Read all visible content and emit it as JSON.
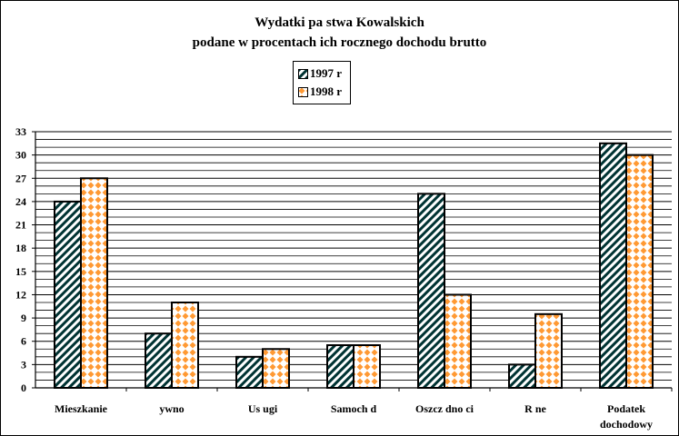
{
  "chart_data": {
    "type": "bar",
    "title": "Wydatki pa  stwa Kowalskich",
    "subtitle": "podane w procentach ich rocznego dochodu brutto",
    "categories": [
      [
        "Mieszkanie"
      ],
      [
        "ywno"
      ],
      [
        "Us ugi"
      ],
      [
        "Samoch d"
      ],
      [
        "Oszcz dno ci"
      ],
      [
        "R   ne"
      ],
      [
        "Podatek",
        "dochodowy"
      ]
    ],
    "series": [
      {
        "name": "1997 r",
        "values": [
          24,
          7,
          4,
          5.5,
          25,
          3,
          31.5
        ],
        "pattern": "diagonal-hatch"
      },
      {
        "name": "1998 r",
        "values": [
          27,
          11,
          5,
          5.5,
          12,
          9.5,
          30
        ],
        "pattern": "orange-diamond"
      }
    ],
    "ylim": [
      0,
      33
    ],
    "yticks": [
      0,
      3,
      6,
      9,
      12,
      15,
      18,
      21,
      24,
      27,
      30,
      33
    ],
    "grid": true,
    "legend": "top-center"
  },
  "colors": {
    "hatch_line": "#003333",
    "diamond": "#ff9933",
    "grid": "#000000"
  }
}
